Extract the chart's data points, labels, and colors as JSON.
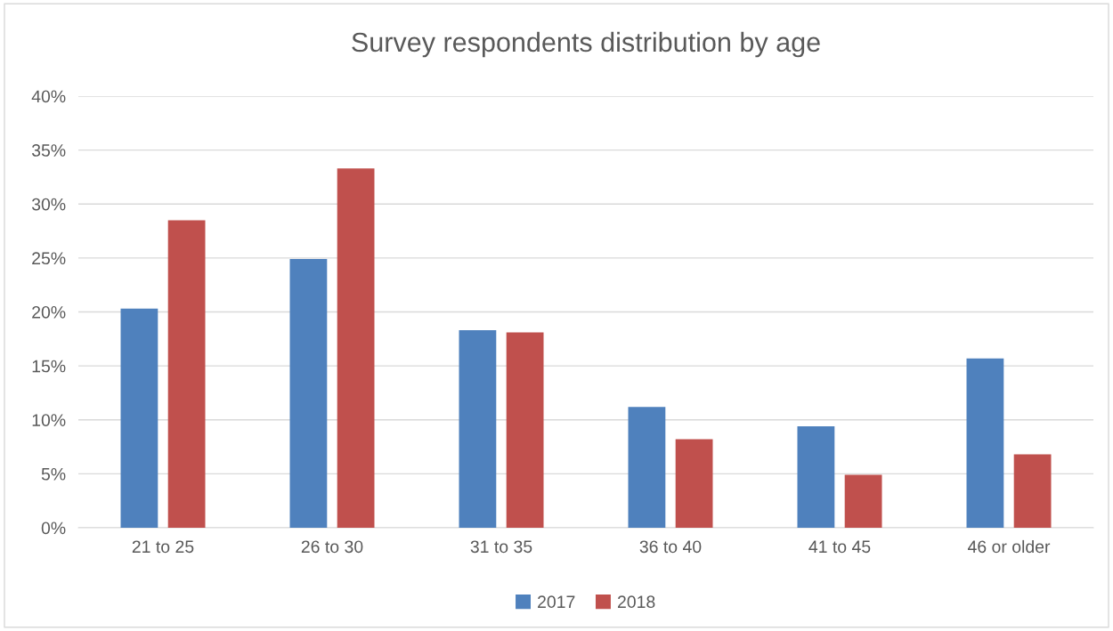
{
  "chart_data": {
    "type": "bar",
    "title": "Survey respondents distribution by age",
    "categories": [
      "21 to 25",
      "26 to 30",
      "31 to 35",
      "36 to 40",
      "41 to 45",
      "46 or older"
    ],
    "series": [
      {
        "name": "2017",
        "color": "#4f81bd",
        "values": [
          20.3,
          24.9,
          18.3,
          11.2,
          9.4,
          15.7
        ]
      },
      {
        "name": "2018",
        "color": "#c0504d",
        "values": [
          28.5,
          33.3,
          18.1,
          8.2,
          4.9,
          6.8
        ]
      }
    ],
    "ylim": [
      0,
      40
    ],
    "yticks": [
      {
        "value": 0,
        "label": "0%"
      },
      {
        "value": 5,
        "label": "5%"
      },
      {
        "value": 10,
        "label": "10%"
      },
      {
        "value": 15,
        "label": "15%"
      },
      {
        "value": 20,
        "label": "20%"
      },
      {
        "value": 25,
        "label": "25%"
      },
      {
        "value": 30,
        "label": "30%"
      },
      {
        "value": 35,
        "label": "35%"
      },
      {
        "value": 40,
        "label": "40%"
      }
    ],
    "grid": "y",
    "legend": "bottom"
  }
}
